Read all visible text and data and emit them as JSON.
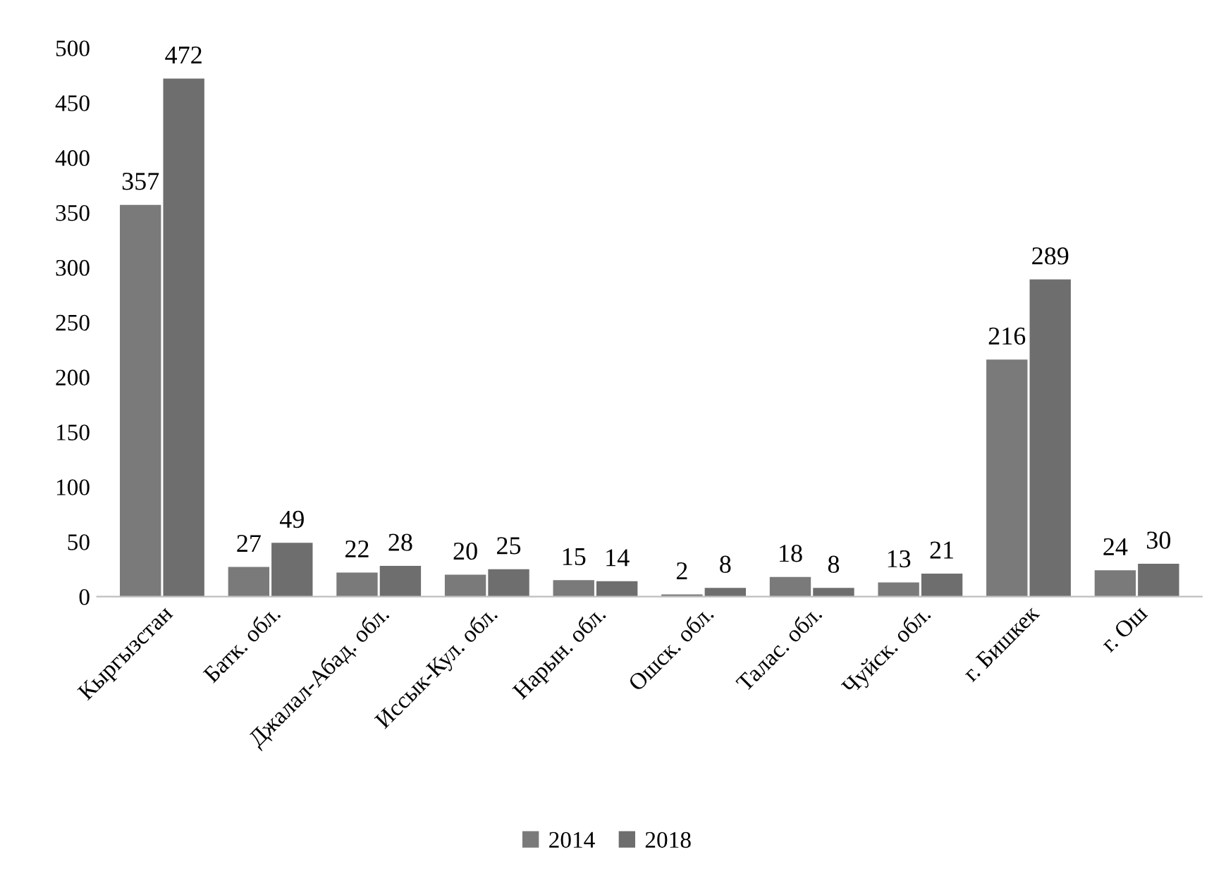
{
  "chart_data": {
    "type": "bar",
    "categories": [
      "Кыргызстан",
      "Батк. обл.",
      "Джалал-Абад. обл.",
      "Иссык-Кул. обл.",
      "Нарын. обл.",
      "Ошск. обл.",
      "Талас. обл.",
      "Чуйск. обл.",
      "г. Бишкек",
      "г. Ош"
    ],
    "series": [
      {
        "name": "2014",
        "color": "#7a7a7a",
        "values": [
          357,
          27,
          22,
          20,
          15,
          2,
          18,
          13,
          216,
          24
        ]
      },
      {
        "name": "2018",
        "color": "#6e6e6e",
        "values": [
          472,
          49,
          28,
          25,
          14,
          8,
          8,
          21,
          289,
          30
        ]
      }
    ],
    "ylim": [
      0,
      500
    ],
    "yticks": [
      0,
      50,
      100,
      150,
      200,
      250,
      300,
      350,
      400,
      450,
      500
    ],
    "data_labels": true,
    "legend": "bottom",
    "grid": false
  }
}
